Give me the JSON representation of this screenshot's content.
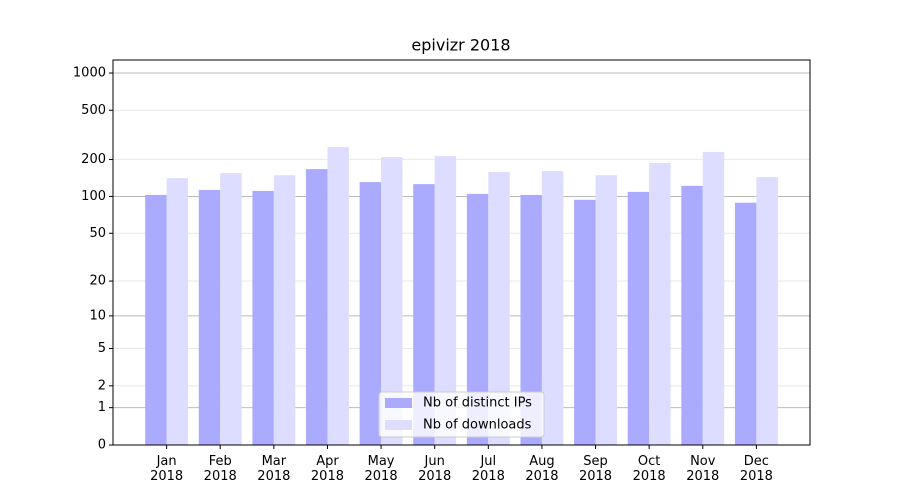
{
  "chart_data": {
    "type": "bar",
    "title": "epivizr 2018",
    "scale": "log1p",
    "categories": [
      "Jan\n2018",
      "Feb\n2018",
      "Mar\n2018",
      "Apr\n2018",
      "May\n2018",
      "Jun\n2018",
      "Jul\n2018",
      "Aug\n2018",
      "Sep\n2018",
      "Oct\n2018",
      "Nov\n2018",
      "Dec\n2018"
    ],
    "series": [
      {
        "name": "Nb of distinct IPs",
        "color": "#aaaaff",
        "values": [
          103,
          113,
          111,
          167,
          131,
          126,
          105,
          103,
          94,
          109,
          122,
          89
        ]
      },
      {
        "name": "Nb of downloads",
        "color": "#ddddff",
        "values": [
          141,
          155,
          149,
          252,
          209,
          213,
          158,
          161,
          149,
          187,
          230,
          144
        ]
      }
    ],
    "ylim": [
      0,
      1273
    ],
    "yticks": [
      0,
      1,
      2,
      5,
      10,
      20,
      50,
      100,
      200,
      500,
      1000
    ],
    "grid": true,
    "legend": "lower center"
  }
}
